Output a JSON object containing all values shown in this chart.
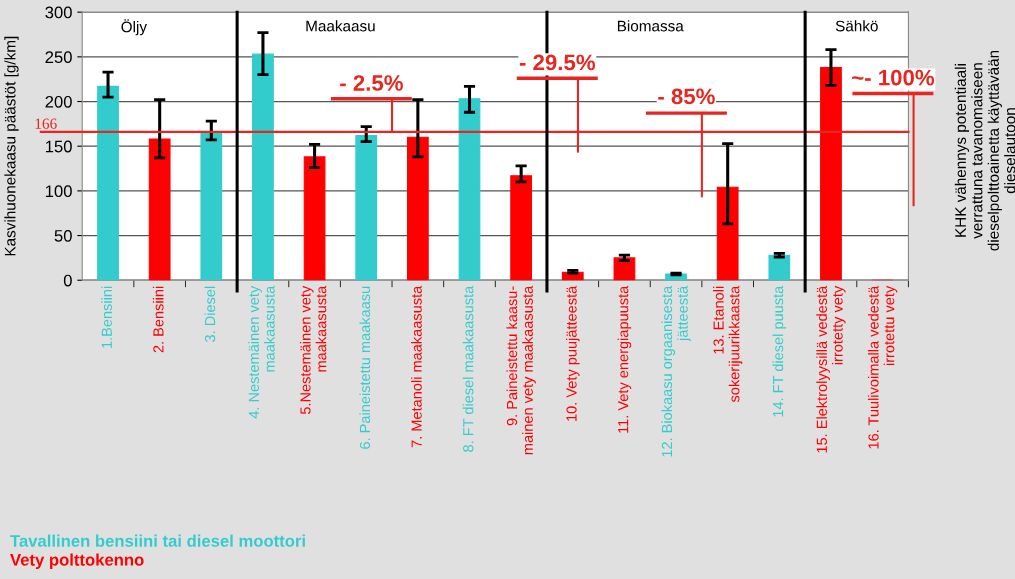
{
  "chart_data": {
    "type": "bar",
    "ylabel": "Kasvihuonekaasu päästöt [g/km]",
    "categories": [
      "1.Bensiini",
      "2. Bensiini",
      "3. Diesel",
      "4. Nestemäinen vety\nmaakaasusta",
      "5.Nestemäinen vety\nmaakaasusta",
      "6. Paineistettu maakaasu",
      "7. Metanoli maakaasusta",
      "8. FT diesel maakaasusta",
      "9. Paineistettu kaasu-\nmainen vety maakaasusta",
      "10. Vety puujätteestä",
      "11. Vety energiapuusta",
      "12. Biokaasu orgaanisesta\njätteestä",
      "13. Etanoli\nsokerijuurikkaasta",
      "14. FT diesel puusta",
      "15. Elektrolyysillä vedestä\nirrotetty vety",
      "16. Tuulivoimalla vedestä\nirrotettu vety"
    ],
    "series": [
      {
        "name": "Tavallinen bensiini tai diesel moottori",
        "color": "#33cccc",
        "values": [
          217,
          null,
          165,
          253,
          null,
          162,
          null,
          203,
          null,
          null,
          null,
          7,
          null,
          28,
          null,
          null
        ],
        "errors": [
          [
            205,
            233
          ],
          null,
          [
            157,
            178
          ],
          [
            230,
            277
          ],
          null,
          [
            155,
            172
          ],
          null,
          [
            188,
            217
          ],
          null,
          null,
          null,
          [
            6,
            8
          ],
          null,
          [
            26,
            30
          ],
          null,
          null
        ]
      },
      {
        "name": "Vety polttokenno",
        "color": "#ff0000",
        "values": [
          null,
          158,
          null,
          null,
          138,
          null,
          160,
          null,
          117,
          9,
          25,
          null,
          104,
          null,
          238,
          0
        ],
        "errors": [
          null,
          [
            137,
            202
          ],
          null,
          null,
          [
            126,
            152
          ],
          null,
          [
            138,
            202
          ],
          null,
          [
            110,
            128
          ],
          [
            8,
            11
          ],
          [
            22,
            28
          ],
          null,
          [
            63,
            153
          ],
          null,
          [
            218,
            258
          ],
          null
        ]
      }
    ],
    "ylim": [
      0,
      300
    ],
    "yticks": [
      0,
      50,
      100,
      150,
      200,
      250,
      300
    ],
    "grid": "y",
    "legend": "bottom left",
    "ref_lines": [
      {
        "axis": "y",
        "value": 166,
        "label": "166",
        "color": "#e8251e"
      }
    ],
    "annotations": [
      "Öljy",
      "Maakaasu",
      "Biomassa",
      "Sähkö",
      {
        "text": "- 2.5%",
        "y": 166
      },
      "- 29.5%",
      "- 85%",
      "~- 100%",
      "KHK vähennys potentiaali\nverrattuna tavanomaiseen\ndieselpolttoainetta käyttävään\ndieselautoon"
    ]
  }
}
